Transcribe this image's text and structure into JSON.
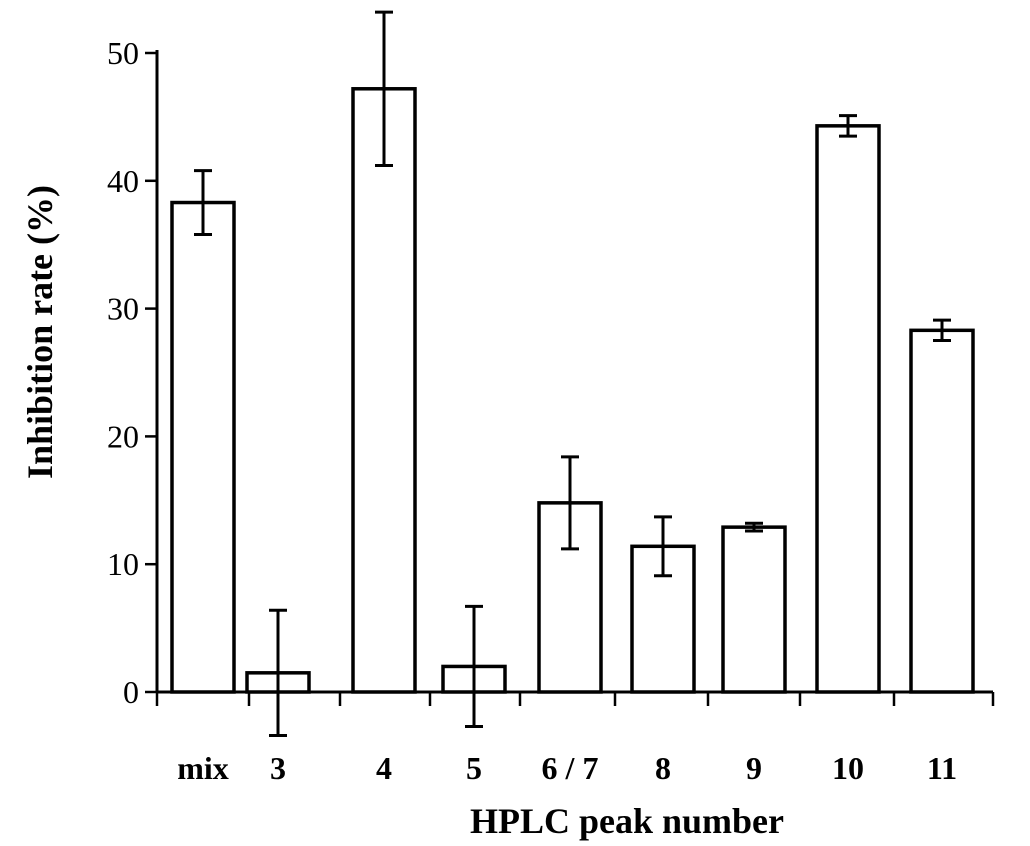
{
  "chart_data": {
    "type": "bar",
    "title": "",
    "xlabel": "HPLC peak number",
    "ylabel": "Inhibition rate (%)",
    "categories": [
      "mix",
      "3",
      "4",
      "5",
      "6 / 7",
      "8",
      "9",
      "10",
      "11"
    ],
    "series": [
      {
        "values": [
          38.3,
          1.5,
          47.2,
          2.0,
          14.8,
          11.4,
          12.9,
          44.3,
          28.3
        ],
        "error": [
          2.5,
          4.9,
          6.0,
          4.7,
          3.6,
          2.3,
          0.3,
          0.8,
          0.8
        ]
      }
    ],
    "ylim": [
      0,
      50
    ],
    "yticks": [
      0,
      10,
      20,
      30,
      40,
      50
    ],
    "grid": false,
    "legend": "none",
    "colors": {
      "bar_fill": "#ffffff",
      "bar_stroke": "#000000"
    }
  }
}
